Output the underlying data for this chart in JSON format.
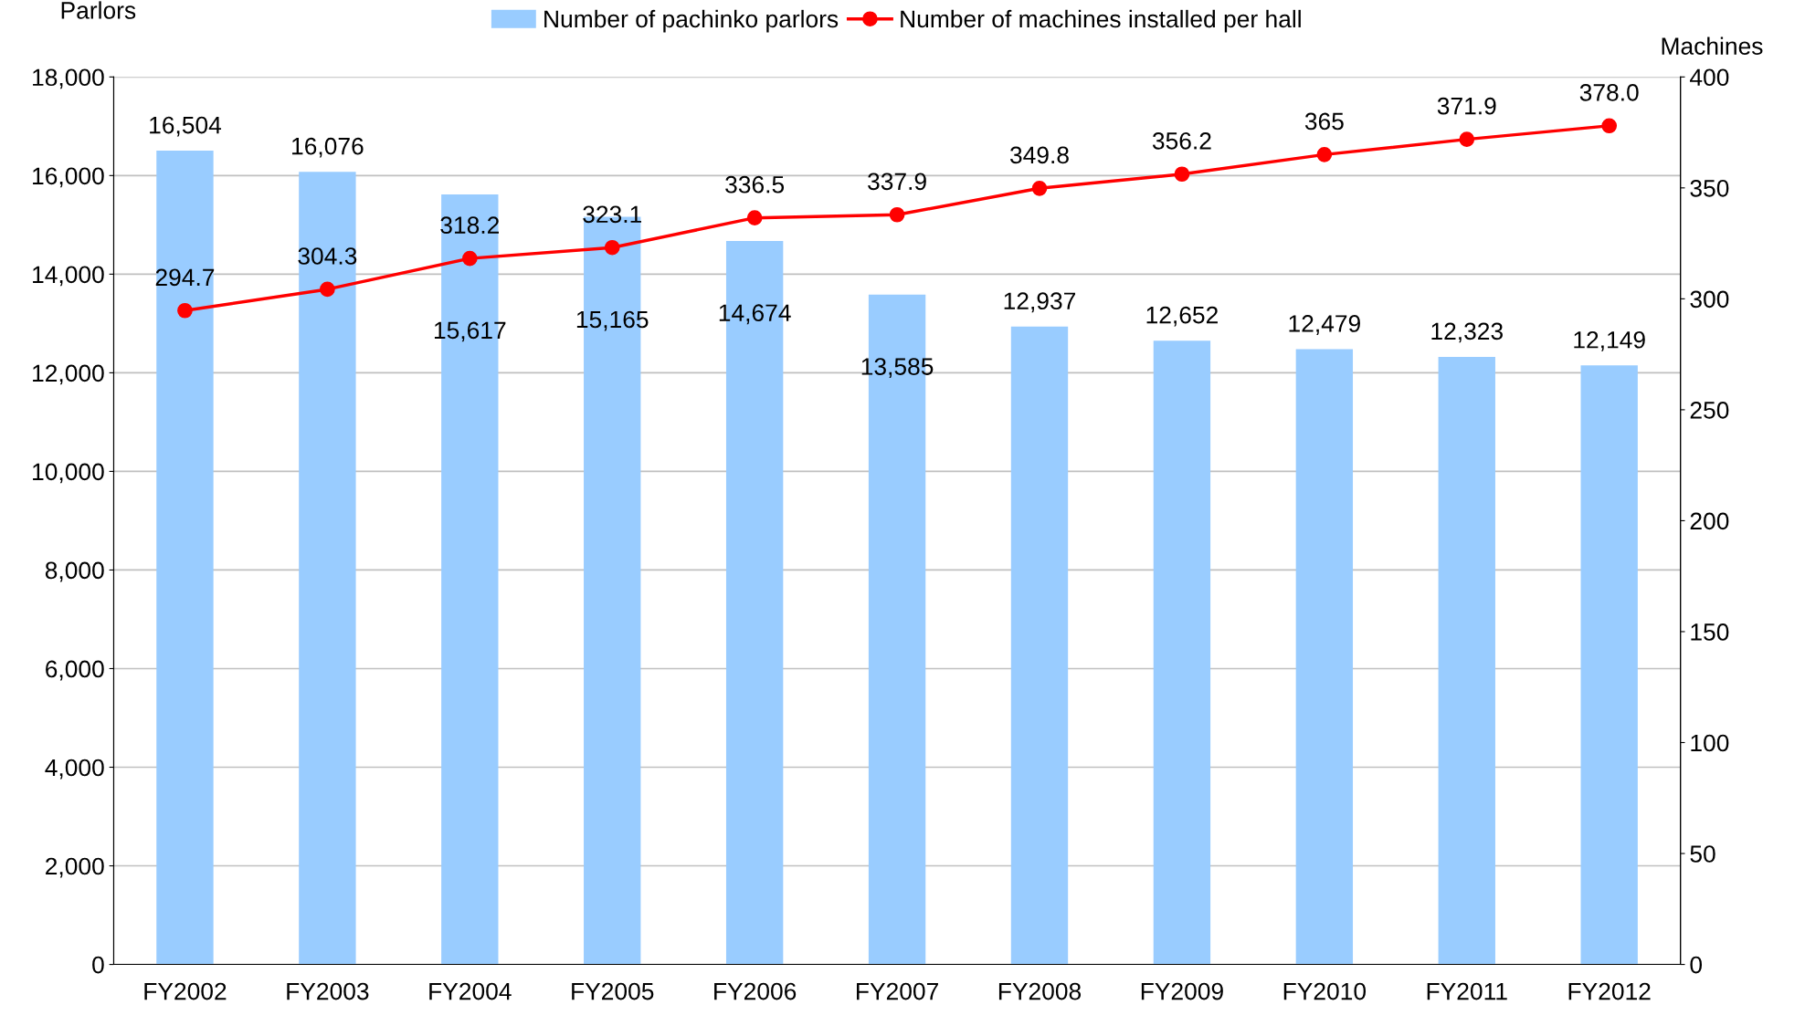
{
  "chart_data": {
    "type": "bar",
    "ylabel": "Parlors",
    "y2label": "Machines",
    "categories": [
      "FY2002",
      "FY2003",
      "FY2004",
      "FY2005",
      "FY2006",
      "FY2007",
      "FY2008",
      "FY2009",
      "FY2010",
      "FY2011",
      "FY2012"
    ],
    "series": [
      {
        "name": "Number of pachinko parlors",
        "color": "#99ccff",
        "values": [
          16504,
          16076,
          15617,
          15165,
          14674,
          13585,
          12937,
          12652,
          12479,
          12323,
          12149
        ],
        "value_labels": [
          "16,504",
          "16,076",
          "15,617",
          "15,165",
          "14,674",
          "13,585",
          "12,937",
          "12,652",
          "12,479",
          "12,323",
          "12,149"
        ]
      },
      {
        "name": "Number of machines installed per hall",
        "type": "line",
        "axis": "y2",
        "color": "#ff0000",
        "marker": "circle",
        "values": [
          294.7,
          304.3,
          318.2,
          323.1,
          336.5,
          337.9,
          349.8,
          356.2,
          365,
          371.9,
          378.0
        ],
        "value_labels": [
          "294.7",
          "304.3",
          "318.2",
          "323.1",
          "336.5",
          "337.9",
          "349.8",
          "356.2",
          "365",
          "371.9",
          "378.0"
        ]
      }
    ],
    "ylim": [
      0,
      18000
    ],
    "yticks": [
      {
        "value": 0,
        "label": "0"
      },
      {
        "value": 2000,
        "label": "2,000"
      },
      {
        "value": 4000,
        "label": "4,000"
      },
      {
        "value": 6000,
        "label": "6,000"
      },
      {
        "value": 8000,
        "label": "8,000"
      },
      {
        "value": 10000,
        "label": "10,000"
      },
      {
        "value": 12000,
        "label": "12,000"
      },
      {
        "value": 14000,
        "label": "14,000"
      },
      {
        "value": 16000,
        "label": "16,000"
      },
      {
        "value": 18000,
        "label": "18,000"
      }
    ],
    "y2lim": [
      0,
      400
    ],
    "y2ticks": [
      0,
      50,
      100,
      150,
      200,
      250,
      300,
      350,
      400
    ],
    "grid": "y",
    "legend": "top"
  }
}
